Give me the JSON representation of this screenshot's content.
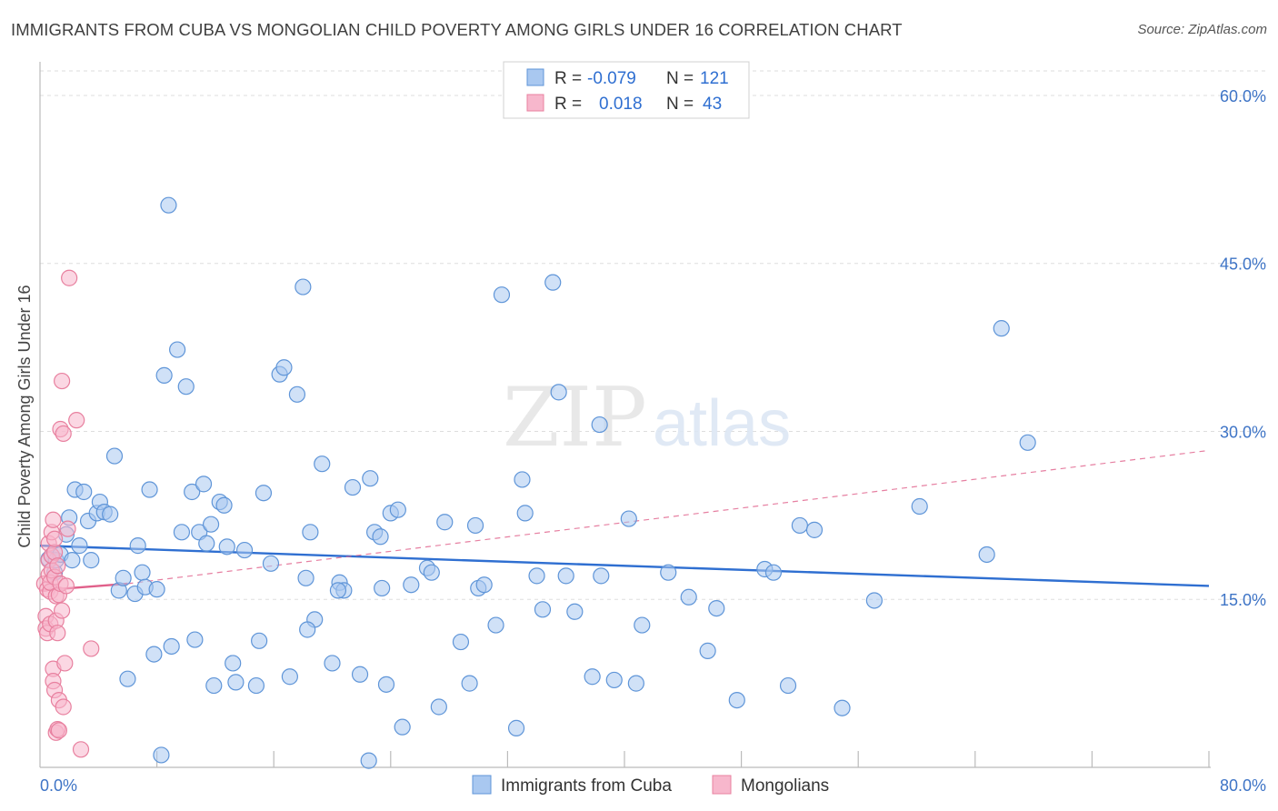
{
  "header": {
    "title": "IMMIGRANTS FROM CUBA VS MONGOLIAN CHILD POVERTY AMONG GIRLS UNDER 16 CORRELATION CHART",
    "source": "Source: ZipAtlas.com"
  },
  "watermark": {
    "zip": "ZIP",
    "atlas": "atlas"
  },
  "legend_box": {
    "rows": [
      {
        "r_label": "R =",
        "r_value": "-0.079",
        "n_label": "N =",
        "n_value": "121",
        "color": "#a9c8f0"
      },
      {
        "r_label": "R =",
        "r_value": "0.018",
        "n_label": "N =",
        "n_value": "43",
        "color": "#f7b7cc"
      }
    ]
  },
  "colors": {
    "blue_fill": "#a9c8f0",
    "blue_stroke": "#5f95d8",
    "blue_line": "#2f6fd1",
    "pink_fill": "#f7b7cc",
    "pink_stroke": "#e8809f",
    "pink_line": "#e0608a",
    "grid": "#dddddd",
    "tick_text": "#3e74c6"
  },
  "chart_data": {
    "type": "scatter",
    "title": "IMMIGRANTS FROM CUBA VS MONGOLIAN CHILD POVERTY AMONG GIRLS UNDER 16 CORRELATION CHART",
    "xlabel": "",
    "ylabel": "Child Poverty Among Girls Under 16",
    "xlim": [
      0,
      80
    ],
    "ylim": [
      0,
      63
    ],
    "y_ticks": [
      15,
      30,
      45,
      60
    ],
    "y_tick_labels": [
      "15.0%",
      "30.0%",
      "45.0%",
      "60.0%"
    ],
    "x_tick_labels": [
      "0.0%",
      "80.0%"
    ],
    "grid": true,
    "legend_position": "bottom",
    "series": [
      {
        "name": "Immigrants from Cuba",
        "r": -0.079,
        "n": 121,
        "trend": {
          "x": [
            0,
            80
          ],
          "y": [
            19.8,
            16.2
          ],
          "style": "solid"
        },
        "points": [
          [
            0.6,
            18.6
          ],
          [
            0.8,
            18.9
          ],
          [
            1.0,
            17.4
          ],
          [
            1.1,
            18.5
          ],
          [
            1.4,
            19.0
          ],
          [
            1.8,
            20.8
          ],
          [
            2.0,
            22.3
          ],
          [
            2.2,
            18.5
          ],
          [
            2.4,
            24.8
          ],
          [
            2.7,
            19.8
          ],
          [
            3.0,
            24.6
          ],
          [
            3.3,
            22.0
          ],
          [
            3.5,
            18.5
          ],
          [
            3.9,
            22.7
          ],
          [
            4.1,
            23.7
          ],
          [
            4.4,
            22.8
          ],
          [
            4.8,
            22.6
          ],
          [
            5.1,
            27.8
          ],
          [
            5.4,
            15.8
          ],
          [
            5.7,
            16.9
          ],
          [
            6.0,
            7.9
          ],
          [
            6.5,
            15.5
          ],
          [
            6.7,
            19.8
          ],
          [
            7.0,
            17.4
          ],
          [
            7.2,
            16.1
          ],
          [
            7.5,
            24.8
          ],
          [
            7.8,
            10.1
          ],
          [
            8.0,
            15.9
          ],
          [
            8.3,
            1.1
          ],
          [
            8.5,
            35.0
          ],
          [
            8.8,
            50.2
          ],
          [
            9.0,
            10.8
          ],
          [
            9.4,
            37.3
          ],
          [
            9.7,
            21.0
          ],
          [
            10.0,
            34.0
          ],
          [
            10.4,
            24.6
          ],
          [
            10.6,
            11.4
          ],
          [
            10.9,
            21.0
          ],
          [
            11.2,
            25.3
          ],
          [
            11.4,
            20.0
          ],
          [
            11.7,
            21.7
          ],
          [
            11.9,
            7.3
          ],
          [
            12.3,
            23.7
          ],
          [
            12.6,
            23.4
          ],
          [
            12.8,
            19.7
          ],
          [
            13.2,
            9.3
          ],
          [
            13.4,
            7.6
          ],
          [
            14.0,
            19.4
          ],
          [
            14.8,
            7.3
          ],
          [
            15.0,
            11.3
          ],
          [
            15.3,
            24.5
          ],
          [
            15.8,
            18.2
          ],
          [
            16.4,
            35.1
          ],
          [
            16.7,
            35.7
          ],
          [
            17.1,
            8.1
          ],
          [
            17.6,
            33.3
          ],
          [
            18.0,
            42.9
          ],
          [
            18.2,
            16.9
          ],
          [
            18.5,
            21.0
          ],
          [
            18.8,
            13.2
          ],
          [
            18.3,
            12.3
          ],
          [
            19.3,
            27.1
          ],
          [
            20.0,
            9.3
          ],
          [
            20.5,
            16.5
          ],
          [
            20.8,
            15.8
          ],
          [
            20.4,
            15.8
          ],
          [
            21.4,
            25.0
          ],
          [
            21.9,
            8.3
          ],
          [
            22.6,
            25.8
          ],
          [
            22.9,
            21.0
          ],
          [
            23.3,
            20.6
          ],
          [
            23.4,
            16.0
          ],
          [
            23.7,
            7.4
          ],
          [
            24.0,
            22.7
          ],
          [
            24.5,
            23.0
          ],
          [
            24.8,
            3.6
          ],
          [
            25.4,
            16.3
          ],
          [
            26.5,
            17.8
          ],
          [
            26.8,
            17.4
          ],
          [
            27.3,
            5.4
          ],
          [
            27.7,
            21.9
          ],
          [
            28.8,
            11.2
          ],
          [
            29.4,
            7.5
          ],
          [
            29.8,
            21.6
          ],
          [
            30.0,
            16.0
          ],
          [
            30.4,
            16.3
          ],
          [
            31.2,
            12.7
          ],
          [
            31.6,
            42.2
          ],
          [
            32.6,
            3.5
          ],
          [
            33.0,
            25.7
          ],
          [
            33.2,
            22.7
          ],
          [
            34.0,
            17.1
          ],
          [
            34.4,
            14.1
          ],
          [
            35.1,
            43.3
          ],
          [
            35.5,
            33.5
          ],
          [
            36.0,
            17.1
          ],
          [
            36.6,
            13.9
          ],
          [
            37.8,
            8.1
          ],
          [
            38.3,
            30.6
          ],
          [
            38.4,
            17.1
          ],
          [
            39.3,
            7.8
          ],
          [
            40.3,
            22.2
          ],
          [
            40.8,
            7.5
          ],
          [
            41.2,
            12.7
          ],
          [
            43.0,
            17.4
          ],
          [
            44.4,
            15.2
          ],
          [
            45.7,
            10.4
          ],
          [
            46.3,
            14.2
          ],
          [
            47.7,
            6.0
          ],
          [
            49.6,
            17.7
          ],
          [
            50.2,
            17.4
          ],
          [
            51.2,
            7.3
          ],
          [
            52.0,
            21.6
          ],
          [
            53.0,
            21.2
          ],
          [
            54.9,
            5.3
          ],
          [
            57.1,
            14.9
          ],
          [
            60.2,
            23.3
          ],
          [
            64.8,
            19.0
          ],
          [
            65.8,
            39.2
          ],
          [
            67.6,
            29.0
          ],
          [
            22.5,
            0.6
          ]
        ]
      },
      {
        "name": "Mongolians",
        "r": 0.018,
        "n": 43,
        "trend": {
          "x": [
            0,
            6
          ],
          "y": [
            15.8,
            16.4
          ],
          "style": "solid",
          "extension": {
            "x": [
              6,
              80
            ],
            "y": [
              16.4,
              28.3
            ],
            "style": "dashed"
          }
        },
        "points": [
          [
            0.3,
            16.4
          ],
          [
            0.4,
            13.5
          ],
          [
            0.4,
            12.4
          ],
          [
            0.5,
            12.0
          ],
          [
            0.5,
            15.9
          ],
          [
            0.6,
            17.2
          ],
          [
            0.6,
            18.5
          ],
          [
            0.6,
            20.0
          ],
          [
            0.7,
            12.8
          ],
          [
            0.7,
            15.7
          ],
          [
            0.7,
            16.5
          ],
          [
            0.8,
            17.6
          ],
          [
            0.8,
            18.9
          ],
          [
            0.8,
            21.0
          ],
          [
            0.9,
            22.1
          ],
          [
            0.9,
            8.8
          ],
          [
            0.9,
            7.7
          ],
          [
            1.0,
            6.9
          ],
          [
            1.0,
            17.0
          ],
          [
            1.0,
            19.2
          ],
          [
            1.0,
            20.4
          ],
          [
            1.1,
            15.3
          ],
          [
            1.1,
            13.1
          ],
          [
            1.1,
            3.1
          ],
          [
            1.2,
            18.0
          ],
          [
            1.2,
            3.4
          ],
          [
            1.2,
            12.0
          ],
          [
            1.3,
            15.4
          ],
          [
            1.3,
            6.0
          ],
          [
            1.3,
            3.3
          ],
          [
            1.4,
            16.4
          ],
          [
            1.4,
            30.2
          ],
          [
            1.5,
            14.0
          ],
          [
            1.5,
            34.5
          ],
          [
            1.6,
            5.4
          ],
          [
            1.6,
            29.8
          ],
          [
            1.7,
            9.3
          ],
          [
            1.8,
            16.2
          ],
          [
            1.9,
            21.3
          ],
          [
            2.0,
            43.7
          ],
          [
            2.5,
            31.0
          ],
          [
            2.8,
            1.6
          ],
          [
            3.5,
            10.6
          ]
        ]
      }
    ],
    "x_grid_ticks": [
      8,
      16,
      24,
      32,
      40,
      48,
      56,
      64,
      72,
      80
    ]
  }
}
